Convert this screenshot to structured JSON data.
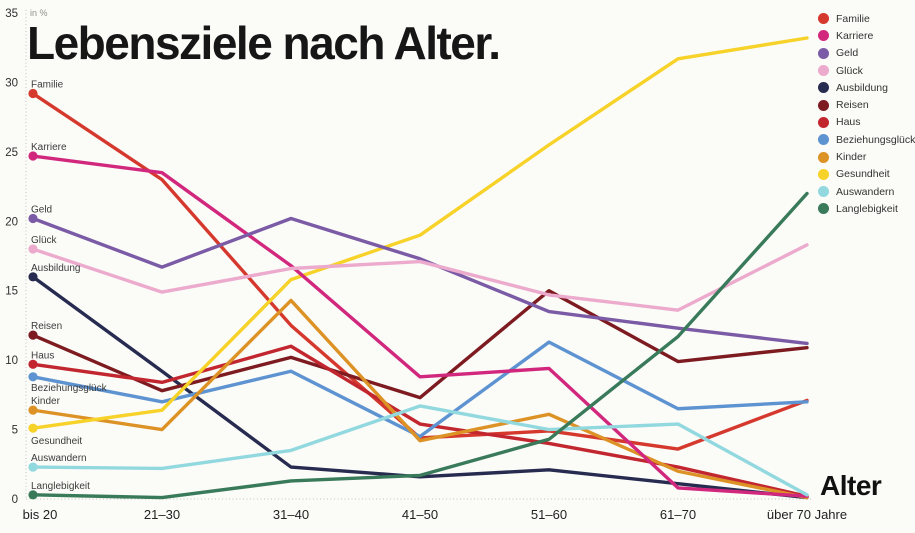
{
  "title": "Lebensziele nach Alter.",
  "unit_label": "in %",
  "x_axis_title": "Alter",
  "chart_data": {
    "type": "line",
    "title": "Lebensziele nach Alter.",
    "xlabel": "Alter",
    "ylabel": "in %",
    "ylim": [
      0,
      35
    ],
    "yticks": [
      0,
      5,
      10,
      15,
      20,
      25,
      30,
      35
    ],
    "grid": false,
    "legend_position": "top-right",
    "categories": [
      "bis 20",
      "21–30",
      "31–40",
      "41–50",
      "51–60",
      "61–70",
      "über 70 Jahre"
    ],
    "series": [
      {
        "name": "Familie",
        "color": "#d5382d",
        "values": [
          29.2,
          23.0,
          12.5,
          4.4,
          4.9,
          3.6,
          7.1
        ]
      },
      {
        "name": "Karriere",
        "color": "#d1287e",
        "values": [
          24.7,
          23.5,
          16.8,
          8.8,
          9.4,
          0.8,
          0.2
        ]
      },
      {
        "name": "Geld",
        "color": "#7b5ba6",
        "values": [
          20.2,
          16.7,
          20.2,
          17.3,
          13.5,
          12.3,
          11.2
        ]
      },
      {
        "name": "Glück",
        "color": "#ecaacd",
        "values": [
          18.0,
          14.9,
          16.6,
          17.1,
          14.7,
          13.6,
          18.3
        ]
      },
      {
        "name": "Ausbildung",
        "color": "#272b50",
        "values": [
          16.0,
          9.2,
          2.3,
          1.6,
          2.1,
          1.1,
          0.1
        ]
      },
      {
        "name": "Reisen",
        "color": "#7d1b20",
        "values": [
          11.8,
          7.8,
          10.2,
          7.3,
          15.0,
          9.9,
          10.9
        ]
      },
      {
        "name": "Haus",
        "color": "#c2272f",
        "values": [
          9.7,
          8.4,
          11.0,
          5.4,
          4.0,
          2.3,
          0.2
        ]
      },
      {
        "name": "Beziehungsglück",
        "color": "#5e93d1",
        "values": [
          8.8,
          7.0,
          9.2,
          4.5,
          11.3,
          6.5,
          7.0
        ]
      },
      {
        "name": "Kinder",
        "color": "#dd9226",
        "values": [
          6.4,
          5.0,
          14.3,
          4.2,
          6.1,
          2.0,
          0.1
        ]
      },
      {
        "name": "Gesundheit",
        "color": "#f7d229",
        "values": [
          5.1,
          6.4,
          15.8,
          19.0,
          25.5,
          31.7,
          33.2
        ]
      },
      {
        "name": "Auswandern",
        "color": "#92d9df",
        "values": [
          2.3,
          2.2,
          3.5,
          6.7,
          5.0,
          5.4,
          0.3
        ]
      },
      {
        "name": "Langlebigkeit",
        "color": "#397a5a",
        "values": [
          0.3,
          0.1,
          1.3,
          1.7,
          4.3,
          11.7,
          22.0
        ]
      }
    ]
  }
}
